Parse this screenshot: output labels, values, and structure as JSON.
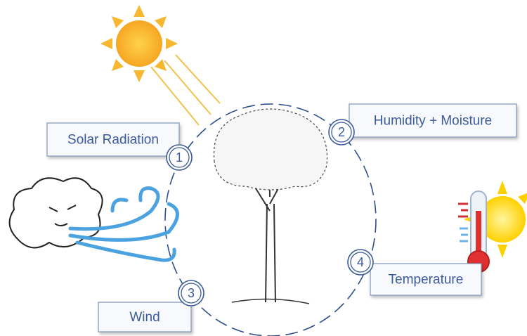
{
  "nodes": [
    {
      "number": 1,
      "label": "Solar Radiation"
    },
    {
      "number": 2,
      "label": "Humidity + Moisture"
    },
    {
      "number": 3,
      "label": "Wind"
    },
    {
      "number": 4,
      "label": "Temperature"
    }
  ]
}
